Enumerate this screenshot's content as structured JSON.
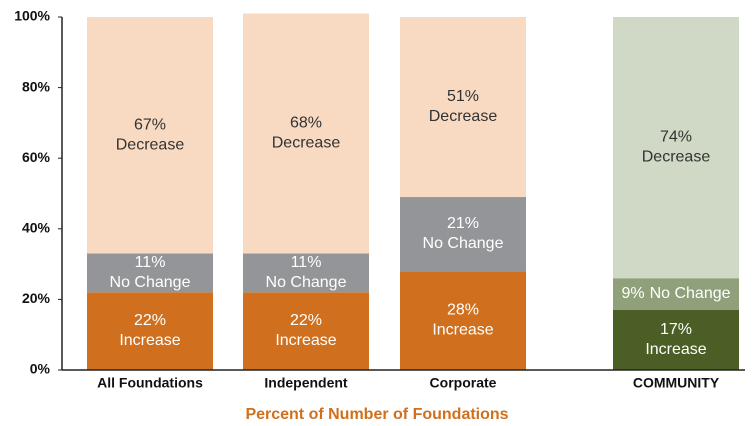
{
  "chart_data": {
    "type": "stacked_bar",
    "xlabel": "Percent of Number of Foundations",
    "categories": [
      "All Foundations",
      "Independent",
      "Corporate",
      "COMMUNITY"
    ],
    "series": [
      {
        "name": "Increase",
        "values": [
          22,
          22,
          28,
          17
        ],
        "value_labels": [
          "22%",
          "22%",
          "28%",
          "17%"
        ],
        "colors": [
          "#d0701e",
          "#d0701e",
          "#d0701e",
          "#4b5e25"
        ]
      },
      {
        "name": "No Change",
        "values": [
          11,
          11,
          21,
          9
        ],
        "value_labels": [
          "11%",
          "11%",
          "21%",
          "9%"
        ],
        "colors": [
          "#949598",
          "#949598",
          "#949598",
          "#8fa07a"
        ]
      },
      {
        "name": "Decrease",
        "values": [
          67,
          68,
          51,
          74
        ],
        "value_labels": [
          "67%",
          "68%",
          "51%",
          "74%"
        ],
        "colors": [
          "#f8dac3",
          "#f8dac3",
          "#f8dac3",
          "#d0d9c5"
        ]
      }
    ],
    "ylim": [
      0,
      100
    ],
    "yticks": [
      {
        "value": 0,
        "label": "0%"
      },
      {
        "value": 20,
        "label": "20%"
      },
      {
        "value": 40,
        "label": "40%"
      },
      {
        "value": 60,
        "label": "60%"
      },
      {
        "value": 80,
        "label": "80%"
      },
      {
        "value": 100,
        "label": "100%"
      }
    ]
  }
}
